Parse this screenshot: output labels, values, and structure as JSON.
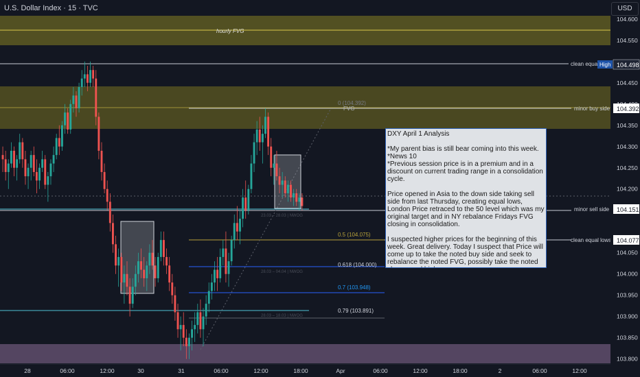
{
  "header": {
    "title": "U.S. Dollar Index · 15 · TVC"
  },
  "currency_button": "USD",
  "colors": {
    "background": "#131722",
    "bull": "#26a69a",
    "bear": "#ef5350",
    "fvg_zone": "#5e5a22",
    "discount_zone": "#5c4a68",
    "fib_line": "#2962ff",
    "text": "#d1d4dc"
  },
  "chart_data": {
    "type": "candlestick",
    "symbol": "U.S. Dollar Index",
    "timeframe": "15",
    "y_range": [
      103.785,
      104.64
    ],
    "y_ticks": [
      104.6,
      104.55,
      104.45,
      104.4,
      104.35,
      104.3,
      104.25,
      104.2,
      104.15,
      104.05,
      104.0,
      103.95,
      103.9,
      103.85,
      103.8
    ],
    "x_ticks": [
      "28",
      "06:00",
      "12:00",
      "30",
      "31",
      "06:00",
      "12:00",
      "18:00",
      "Apr",
      "06:00",
      "12:00",
      "18:00",
      "2",
      "06:00",
      "12:00"
    ],
    "price_badges": [
      {
        "label": "High",
        "value": "104.498"
      },
      {
        "value": "104.392"
      },
      {
        "value": "104.151"
      },
      {
        "value": "104.077"
      }
    ],
    "level_labels": [
      "clean equal",
      "minor buy side",
      "minor sell side",
      "clean equal lows"
    ],
    "zone_labels": [
      "hourly FVG",
      "FVG"
    ],
    "fib_levels": [
      {
        "label": "0 (104.392)",
        "price": 104.392
      },
      {
        "label": "0.5 (104.075)",
        "price": 104.075
      },
      {
        "label": "0.618 (104.000)",
        "price": 104.0
      },
      {
        "label": "0.7 (103.948)",
        "price": 103.948
      },
      {
        "label": "0.79 (103.891)",
        "price": 103.891
      }
    ],
    "nwog_labels": [
      "23.03 – 28.03 | NWOG",
      "28.03 – 04.04 | NWOG",
      "28.03 – 18.03 | NWOG"
    ],
    "series": [
      {
        "values": [
          [
            104.28,
            104.3,
            104.24,
            104.27
          ],
          [
            104.27,
            104.29,
            104.22,
            104.24
          ],
          [
            104.24,
            104.27,
            104.2,
            104.26
          ],
          [
            104.26,
            104.31,
            104.25,
            104.29
          ],
          [
            104.29,
            104.3,
            104.23,
            104.25
          ],
          [
            104.25,
            104.28,
            104.22,
            104.27
          ],
          [
            104.27,
            104.33,
            104.26,
            104.31
          ],
          [
            104.31,
            104.32,
            104.25,
            104.27
          ],
          [
            104.27,
            104.29,
            104.21,
            104.23
          ],
          [
            104.23,
            104.26,
            104.2,
            104.25
          ],
          [
            104.25,
            104.29,
            104.22,
            104.28
          ],
          [
            104.28,
            104.3,
            104.23,
            104.24
          ],
          [
            104.24,
            104.27,
            104.19,
            104.22
          ],
          [
            104.22,
            104.26,
            104.2,
            104.25
          ],
          [
            104.25,
            104.29,
            104.24,
            104.27
          ],
          [
            104.27,
            104.28,
            104.2,
            104.21
          ],
          [
            104.21,
            104.24,
            104.17,
            104.23
          ],
          [
            104.23,
            104.27,
            104.21,
            104.26
          ],
          [
            104.26,
            104.3,
            104.24,
            104.28
          ],
          [
            104.28,
            104.33,
            104.27,
            104.32
          ],
          [
            104.32,
            104.35,
            104.28,
            104.3
          ],
          [
            104.3,
            104.36,
            104.29,
            104.35
          ],
          [
            104.35,
            104.4,
            104.33,
            104.38
          ],
          [
            104.38,
            104.39,
            104.33,
            104.34
          ],
          [
            104.34,
            104.41,
            104.33,
            104.4
          ],
          [
            104.4,
            104.44,
            104.38,
            104.42
          ],
          [
            104.42,
            104.43,
            104.37,
            104.39
          ],
          [
            104.39,
            104.45,
            104.38,
            104.44
          ],
          [
            104.44,
            104.48,
            104.42,
            104.46
          ],
          [
            104.46,
            104.5,
            104.44,
            104.47
          ],
          [
            104.47,
            104.49,
            104.43,
            104.45
          ],
          [
            104.45,
            104.5,
            104.44,
            104.48
          ],
          [
            104.48,
            104.49,
            104.44,
            104.46
          ],
          [
            104.46,
            104.48,
            104.35,
            104.37
          ],
          [
            104.37,
            104.38,
            104.27,
            104.29
          ],
          [
            104.29,
            104.31,
            104.22,
            104.24
          ],
          [
            104.24,
            104.26,
            104.19,
            104.2
          ],
          [
            104.2,
            104.22,
            104.15,
            104.17
          ],
          [
            104.17,
            104.19,
            104.1,
            104.12
          ],
          [
            104.12,
            104.14,
            104.05,
            104.07
          ],
          [
            104.07,
            104.09,
            104.0,
            104.02
          ],
          [
            104.02,
            104.06,
            103.97,
            104.04
          ],
          [
            104.04,
            104.05,
            103.96,
            103.98
          ],
          [
            103.98,
            104.02,
            103.93,
            104.0
          ],
          [
            104.0,
            104.03,
            103.95,
            103.97
          ],
          [
            103.97,
            103.99,
            103.9,
            103.93
          ],
          [
            103.93,
            103.99,
            103.92,
            103.97
          ],
          [
            103.97,
            104.02,
            103.95,
            104.0
          ],
          [
            104.0,
            104.05,
            103.98,
            104.03
          ],
          [
            104.03,
            104.06,
            103.99,
            104.01
          ],
          [
            104.01,
            104.04,
            103.97,
            103.99
          ],
          [
            103.99,
            104.03,
            103.96,
            104.02
          ],
          [
            104.02,
            104.07,
            104.0,
            104.05
          ],
          [
            104.05,
            104.08,
            104.01,
            104.02
          ],
          [
            104.02,
            104.04,
            103.97,
            103.99
          ],
          [
            103.99,
            104.05,
            103.98,
            104.04
          ],
          [
            104.04,
            104.1,
            104.03,
            104.08
          ],
          [
            104.08,
            104.1,
            104.02,
            104.04
          ],
          [
            104.04,
            104.06,
            104.0,
            104.02
          ],
          [
            104.02,
            104.04,
            103.96,
            103.98
          ],
          [
            103.98,
            104.0,
            103.93,
            103.95
          ],
          [
            103.95,
            103.97,
            103.89,
            103.91
          ],
          [
            103.91,
            103.93,
            103.85,
            103.87
          ],
          [
            103.87,
            103.9,
            103.82,
            103.88
          ],
          [
            103.88,
            103.91,
            103.83,
            103.85
          ],
          [
            103.85,
            103.87,
            103.8,
            103.83
          ],
          [
            103.83,
            103.86,
            103.8,
            103.85
          ],
          [
            103.85,
            103.89,
            103.82,
            103.87
          ],
          [
            103.87,
            103.91,
            103.84,
            103.88
          ],
          [
            103.88,
            103.93,
            103.86,
            103.91
          ],
          [
            103.91,
            103.94,
            103.85,
            103.87
          ],
          [
            103.87,
            103.92,
            103.83,
            103.9
          ],
          [
            103.9,
            103.95,
            103.88,
            103.93
          ],
          [
            103.93,
            103.98,
            103.91,
            103.96
          ],
          [
            103.96,
            104.0,
            103.94,
            103.98
          ],
          [
            103.98,
            104.03,
            103.96,
            104.01
          ],
          [
            104.01,
            104.04,
            103.96,
            103.99
          ],
          [
            103.99,
            104.06,
            103.98,
            104.04
          ],
          [
            104.04,
            104.08,
            104.02,
            104.06
          ],
          [
            104.06,
            104.1,
            103.98,
            104.0
          ],
          [
            104.0,
            104.05,
            103.97,
            104.03
          ],
          [
            104.03,
            104.09,
            104.02,
            104.08
          ],
          [
            104.08,
            104.14,
            104.06,
            104.12
          ],
          [
            104.12,
            104.16,
            104.08,
            104.1
          ],
          [
            104.1,
            104.15,
            104.07,
            104.13
          ],
          [
            104.13,
            104.2,
            104.11,
            104.18
          ],
          [
            104.18,
            104.22,
            104.13,
            104.15
          ],
          [
            104.15,
            104.21,
            104.14,
            104.2
          ],
          [
            104.2,
            104.28,
            104.19,
            104.26
          ],
          [
            104.26,
            104.33,
            104.24,
            104.31
          ],
          [
            104.31,
            104.36,
            104.28,
            104.34
          ],
          [
            104.34,
            104.37,
            104.29,
            104.31
          ],
          [
            104.31,
            104.35,
            104.26,
            104.33
          ],
          [
            104.33,
            104.39,
            104.32,
            104.37
          ],
          [
            104.37,
            104.38,
            104.28,
            104.3
          ],
          [
            104.3,
            104.32,
            104.23,
            104.25
          ],
          [
            104.25,
            104.28,
            104.21,
            104.26
          ],
          [
            104.26,
            104.29,
            104.22,
            104.23
          ],
          [
            104.23,
            104.25,
            104.19,
            104.21
          ],
          [
            104.21,
            104.24,
            104.18,
            104.22
          ],
          [
            104.22,
            104.23,
            104.18,
            104.19
          ],
          [
            104.19,
            104.22,
            104.17,
            104.21
          ],
          [
            104.21,
            104.22,
            104.17,
            104.18
          ],
          [
            104.18,
            104.2,
            104.16,
            104.19
          ],
          [
            104.19,
            104.2,
            104.16,
            104.17
          ],
          [
            104.17,
            104.19,
            104.15,
            104.18
          ],
          [
            104.18,
            104.19,
            104.15,
            104.16
          ]
        ]
      }
    ]
  },
  "analysis_note": {
    "title": "DXY April 1 Analysis",
    "body": "*My parent bias is still bear coming into this week.\n*News 10\n*Previous session price is in a premium and in a discount on current trading range in a consolidation cycle.\n\nPrice opened in Asia to the down side taking sell side from last Thursday, creating equal lows, London Price retraced to the 50 level which was my original target and in NY rebalance Fridays FVG closing in consolidation.\n\nI suspected higher prices for the beginning of this week. Great delivery. Today I suspect that Price will come up to take the noted buy side and seek to rebalance the noted FVG, possibly take the noted clean equal highs.\nI am bull on this day.\n\nStay humble to what Price prints and don't get stuck in any idea yet be nimble."
  }
}
